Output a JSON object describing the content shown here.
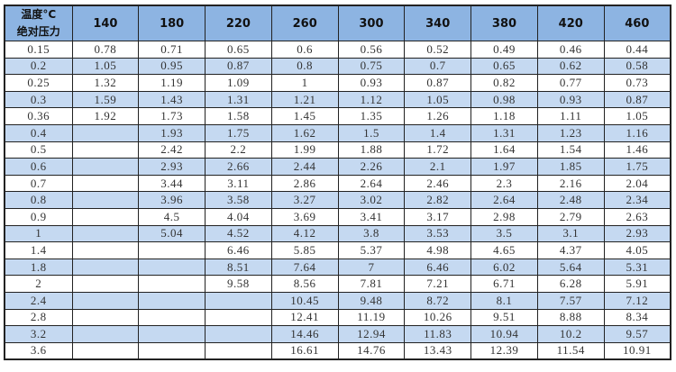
{
  "table": {
    "corner": {
      "line1": "温度°C",
      "line2": "绝对压力"
    },
    "columns": [
      "140",
      "180",
      "220",
      "260",
      "300",
      "340",
      "380",
      "420",
      "460"
    ],
    "rows": [
      {
        "pressure": "0.15",
        "values": [
          "0.78",
          "0.71",
          "0.65",
          "0.6",
          "0.56",
          "0.52",
          "0.49",
          "0.46",
          "0.44"
        ]
      },
      {
        "pressure": "0.2",
        "values": [
          "1.05",
          "0.95",
          "0.87",
          "0.8",
          "0.75",
          "0.7",
          "0.65",
          "0.62",
          "0.58"
        ]
      },
      {
        "pressure": "0.25",
        "values": [
          "1.32",
          "1.19",
          "1.09",
          "1",
          "0.93",
          "0.87",
          "0.82",
          "0.77",
          "0.73"
        ]
      },
      {
        "pressure": "0.3",
        "values": [
          "1.59",
          "1.43",
          "1.31",
          "1.21",
          "1.12",
          "1.05",
          "0.98",
          "0.93",
          "0.87"
        ]
      },
      {
        "pressure": "0.36",
        "values": [
          "1.92",
          "1.73",
          "1.58",
          "1.45",
          "1.35",
          "1.26",
          "1.18",
          "1.11",
          "1.05"
        ]
      },
      {
        "pressure": "0.4",
        "values": [
          "",
          "1.93",
          "1.75",
          "1.62",
          "1.5",
          "1.4",
          "1.31",
          "1.23",
          "1.16"
        ]
      },
      {
        "pressure": "0.5",
        "values": [
          "",
          "2.42",
          "2.2",
          "1.99",
          "1.88",
          "1.72",
          "1.64",
          "1.54",
          "1.46"
        ]
      },
      {
        "pressure": "0.6",
        "values": [
          "",
          "2.93",
          "2.66",
          "2.44",
          "2.26",
          "2.1",
          "1.97",
          "1.85",
          "1.75"
        ]
      },
      {
        "pressure": "0.7",
        "values": [
          "",
          "3.44",
          "3.11",
          "2.86",
          "2.64",
          "2.46",
          "2.3",
          "2.16",
          "2.04"
        ]
      },
      {
        "pressure": "0.8",
        "values": [
          "",
          "3.96",
          "3.58",
          "3.27",
          "3.02",
          "2.82",
          "2.64",
          "2.48",
          "2.34"
        ]
      },
      {
        "pressure": "0.9",
        "values": [
          "",
          "4.5",
          "4.04",
          "3.69",
          "3.41",
          "3.17",
          "2.98",
          "2.79",
          "2.63"
        ]
      },
      {
        "pressure": "1",
        "values": [
          "",
          "5.04",
          "4.52",
          "4.12",
          "3.8",
          "3.53",
          "3.5",
          "3.1",
          "2.93"
        ]
      },
      {
        "pressure": "1.4",
        "values": [
          "",
          "",
          "6.46",
          "5.85",
          "5.37",
          "4.98",
          "4.65",
          "4.37",
          "4.05"
        ]
      },
      {
        "pressure": "1.8",
        "values": [
          "",
          "",
          "8.51",
          "7.64",
          "7",
          "6.46",
          "6.02",
          "5.64",
          "5.31"
        ]
      },
      {
        "pressure": "2",
        "values": [
          "",
          "",
          "9.58",
          "8.56",
          "7.81",
          "7.21",
          "6.71",
          "6.28",
          "5.91"
        ]
      },
      {
        "pressure": "2.4",
        "values": [
          "",
          "",
          "",
          "10.45",
          "9.48",
          "8.72",
          "8.1",
          "7.57",
          "7.12"
        ]
      },
      {
        "pressure": "2.8",
        "values": [
          "",
          "",
          "",
          "12.41",
          "11.19",
          "10.26",
          "9.51",
          "8.88",
          "8.34"
        ]
      },
      {
        "pressure": "3.2",
        "values": [
          "",
          "",
          "",
          "14.46",
          "12.94",
          "11.83",
          "10.94",
          "10.2",
          "9.57"
        ]
      },
      {
        "pressure": "3.6",
        "values": [
          "",
          "",
          "",
          "16.61",
          "14.76",
          "13.43",
          "12.39",
          "11.54",
          "10.91"
        ]
      }
    ],
    "colors": {
      "header_bg": "#8db4e2",
      "alt_row_bg": "#c5d9f1",
      "border": "#222222"
    }
  }
}
